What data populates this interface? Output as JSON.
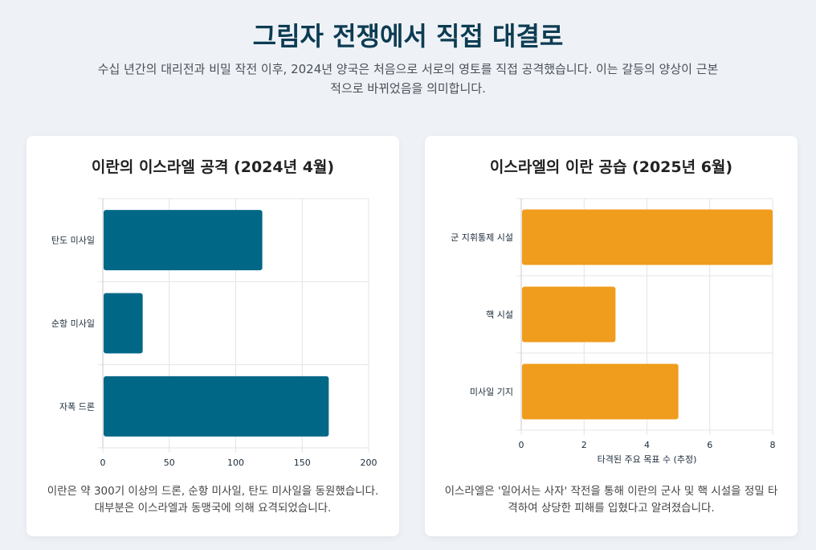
{
  "header": {
    "title": "그림자 전쟁에서 직접 대결로",
    "subtitle": "수십 년간의 대리전과 비밀 작전 이후, 2024년 양국은 처음으로 서로의 영토를 직접 공격했습니다. 이는 갈등의 양상이 근본적으로 바뀌었음을 의미합니다."
  },
  "colors": {
    "left_bar": "#006787",
    "right_bar": "#f09c1d"
  },
  "left_card": {
    "title": "이란의 이스라엘 공격 (2024년 4월)",
    "description": "이란은 약 300기 이상의 드론, 순항 미사일, 탄도 미사일을 동원했습니다. 대부분은 이스라엘과 동맹국에 의해 요격되었습니다."
  },
  "right_card": {
    "title": "이스라엘의 이란 공습 (2025년 6월)",
    "description": "이스라엘은 '일어서는 사자' 작전을 통해 이란의 군사 및 핵 시설을 정밀 타격하여 상당한 피해를 입혔다고 알려졌습니다."
  },
  "chart_data": [
    {
      "type": "bar",
      "orientation": "horizontal",
      "title": "이란의 이스라엘 공격 (2024년 4월)",
      "categories": [
        "탄도 미사일",
        "순항 미사일",
        "자폭 드론"
      ],
      "values": [
        120,
        30,
        170
      ],
      "xlim": [
        0,
        200
      ],
      "xticks": [
        "0",
        "50",
        "100",
        "150",
        "200"
      ],
      "xlabel": "",
      "grid": true
    },
    {
      "type": "bar",
      "orientation": "horizontal",
      "title": "이스라엘의 이란 공습 (2025년 6월)",
      "categories": [
        "군 지휘통제 시설",
        "핵 시설",
        "미사일 기지"
      ],
      "values": [
        8,
        3,
        5
      ],
      "xlim": [
        0,
        8
      ],
      "xticks": [
        "0",
        "2",
        "4",
        "6",
        "8"
      ],
      "xlabel": "타격된 주요 목표 수 (추정)",
      "grid": true
    }
  ]
}
